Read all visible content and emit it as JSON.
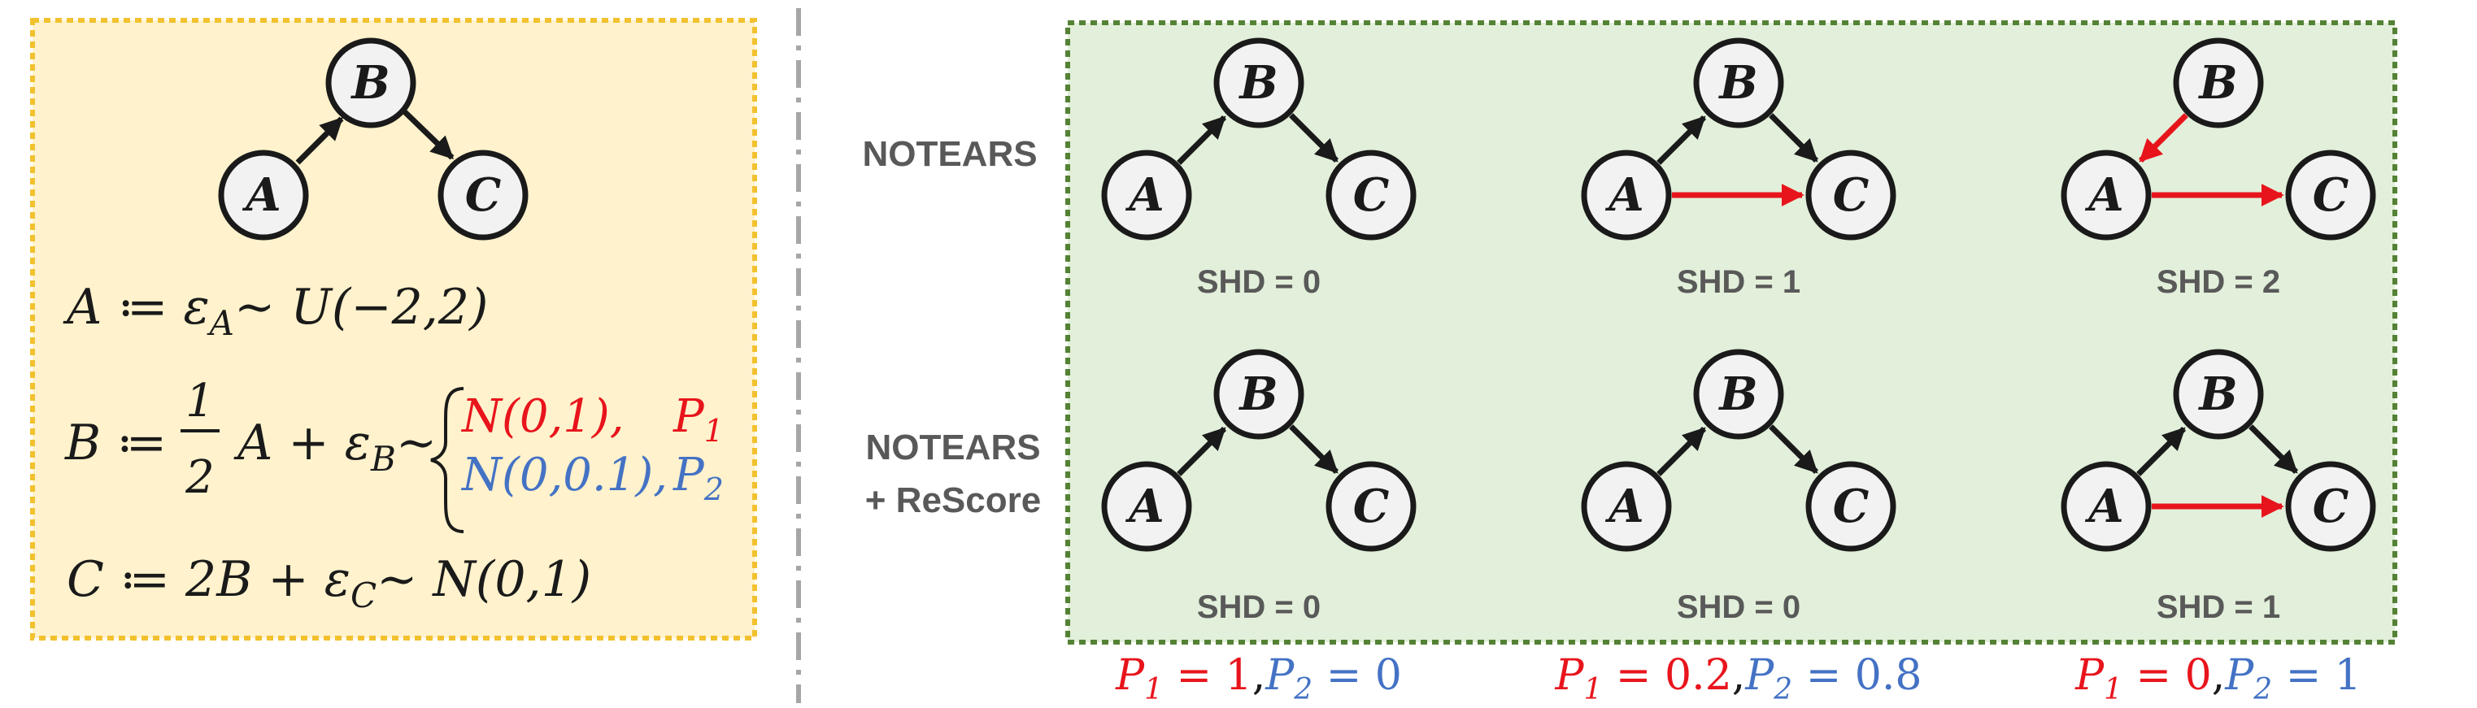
{
  "scm": {
    "a_eq": "A ≔  ε",
    "a_sub": "A",
    "a_rest": "∼ U(−2,2)",
    "b_lhs": "B ≔",
    "b_frac_num": "1",
    "b_frac_den": "2",
    "b_mid": "A +  ε",
    "b_sub": "B",
    "b_tilde": "∼",
    "p1_dist": "N(0,1),",
    "p1_label": "P",
    "p1_sub": "1",
    "p2_dist": "N(0,0.1),",
    "p2_label": "P",
    "p2_sub": "2",
    "c_eq": "C ≔ 2B +  ε",
    "c_sub": "C",
    "c_rest": "∼ N(0,1)"
  },
  "nodes": {
    "a": "A",
    "b": "B",
    "c": "C"
  },
  "rows": [
    {
      "label_line1": "NOTEARS",
      "label_line2": ""
    },
    {
      "label_line1": "NOTEARS",
      "label_line2": "+ ReScore"
    }
  ],
  "shd": {
    "r1": [
      "SHD = 0",
      "SHD = 1",
      "SHD = 2"
    ],
    "r2": [
      "SHD = 0",
      "SHD = 0",
      "SHD = 1"
    ]
  },
  "probs": [
    {
      "p1": "P",
      "p1_sub": "1",
      "p1_val": " = 1",
      "sep": ",",
      "p2": "P",
      "p2_sub": "2",
      "p2_val": " = 0"
    },
    {
      "p1": "P",
      "p1_sub": "1",
      "p1_val": " = 0.2",
      "sep": ",",
      "p2": "P",
      "p2_sub": "2",
      "p2_val": " = 0.8"
    },
    {
      "p1": "P",
      "p1_sub": "1",
      "p1_val": " = 0",
      "sep": ",",
      "p2": "P",
      "p2_sub": "2",
      "p2_val": " = 1"
    }
  ],
  "colors": {
    "left_box_fill": "#fff2cc",
    "left_box_border": "#f2c12e",
    "right_box_fill": "#e2efda",
    "right_box_border": "#548235",
    "wrong_edge": "#e8141c",
    "p1": "#e8141c",
    "p2": "#4472c4"
  }
}
